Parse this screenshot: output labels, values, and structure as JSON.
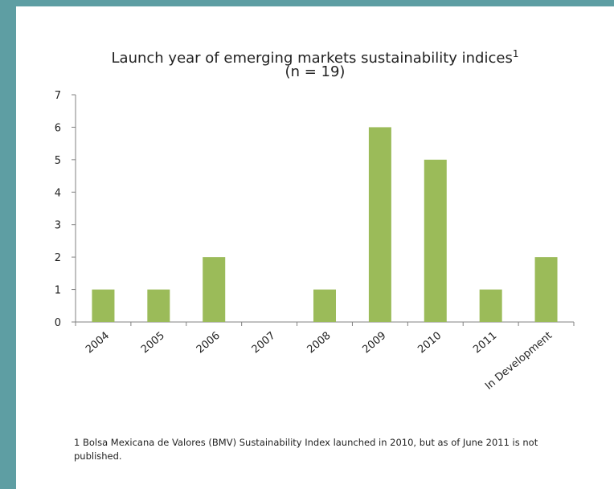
{
  "chart_data": {
    "type": "bar",
    "title": "Launch year of emerging markets sustainability indices",
    "title_superscript": "1",
    "subtitle": "(n = 19)",
    "categories": [
      "2004",
      "2005",
      "2006",
      "2007",
      "2008",
      "2009",
      "2010",
      "2011",
      "In Development"
    ],
    "values": [
      1,
      1,
      2,
      0,
      1,
      6,
      5,
      1,
      2
    ],
    "ylim": [
      0,
      7
    ],
    "yticks": [
      0,
      1,
      2,
      3,
      4,
      5,
      6,
      7
    ],
    "xlabel": "",
    "ylabel": "",
    "grid": false,
    "bar_color": "#9bbb59"
  },
  "footnote": "1 Bolsa Mexicana de Valores (BMV) Sustainability Index launched in 2010, but as of June 2011 is not published."
}
